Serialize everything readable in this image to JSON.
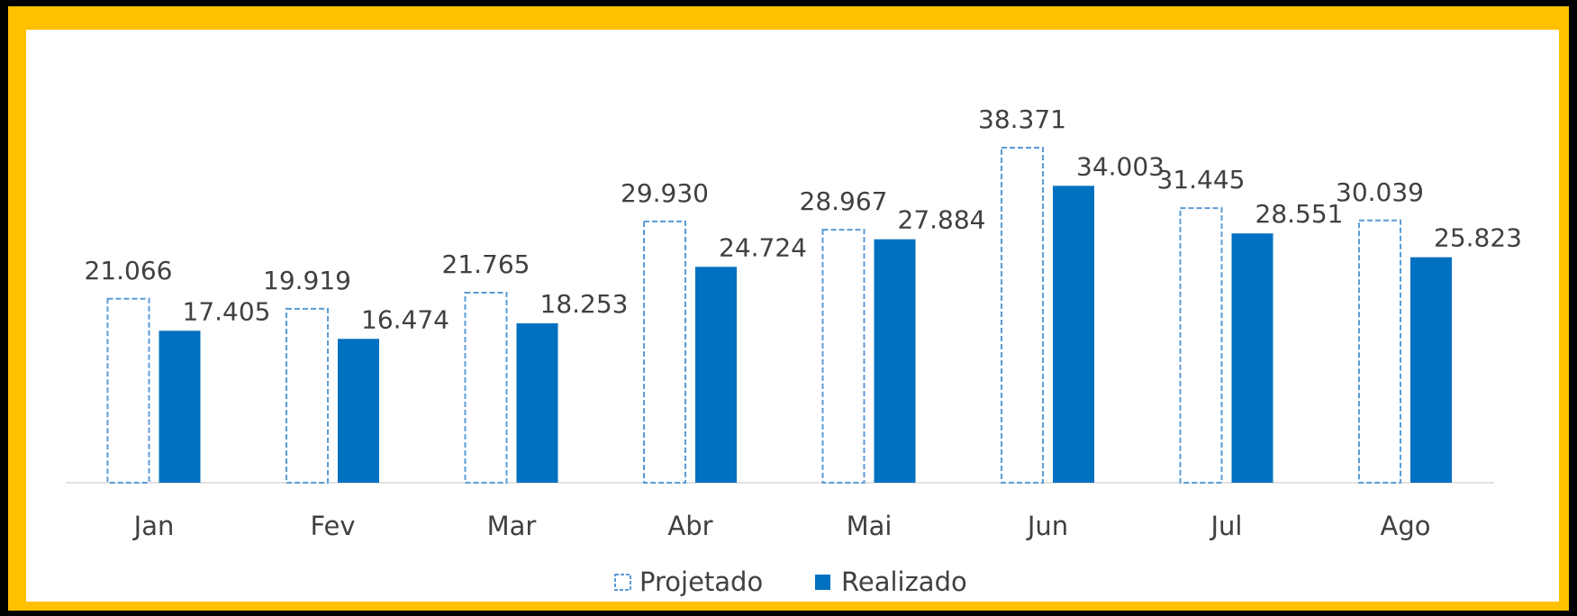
{
  "chart_data": {
    "type": "bar",
    "categories": [
      "Jan",
      "Fev",
      "Mar",
      "Abr",
      "Mai",
      "Jun",
      "Jul",
      "Ago"
    ],
    "series": [
      {
        "name": "Projetado",
        "color": "#5b9bd5",
        "style": "dashed-outline",
        "values": [
          21066,
          19919,
          21765,
          29930,
          28967,
          38371,
          31445,
          30039
        ],
        "value_labels": [
          "21.066",
          "19.919",
          "21.765",
          "29.930",
          "28.967",
          "38.371",
          "31.445",
          "30.039"
        ]
      },
      {
        "name": "Realizado",
        "color": "#0070c0",
        "style": "solid",
        "values": [
          17405,
          16474,
          18253,
          24724,
          27884,
          34003,
          28551,
          25823
        ],
        "value_labels": [
          "17.405",
          "16.474",
          "18.253",
          "24.724",
          "27.884",
          "34.003",
          "28.551",
          "25.823"
        ]
      }
    ],
    "legend": "bottom"
  }
}
